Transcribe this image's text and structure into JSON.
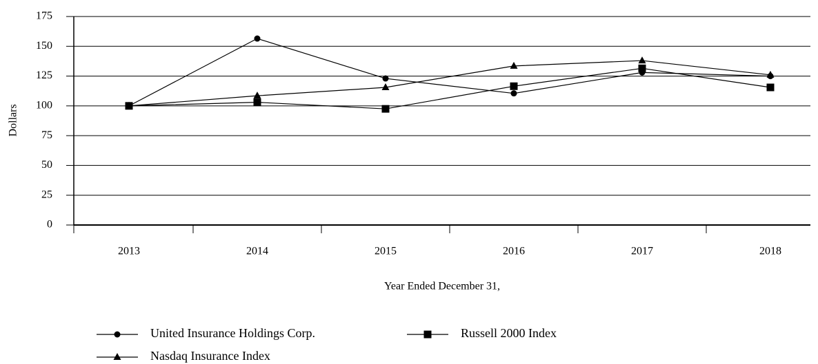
{
  "chart_data": {
    "type": "line",
    "xlabel": "Year Ended December 31,",
    "ylabel": "Dollars",
    "categories": [
      "2013",
      "2014",
      "2015",
      "2016",
      "2017",
      "2018"
    ],
    "series": [
      {
        "name": "United Insurance Holdings Corp.",
        "color": "#000000",
        "marker": "circle",
        "values": [
          100,
          156.5,
          123,
          110.5,
          128,
          125
        ]
      },
      {
        "name": "Russell 2000 Index",
        "color": "#000000",
        "marker": "square",
        "values": [
          100,
          103,
          97.5,
          116.5,
          131.5,
          115.5
        ]
      },
      {
        "name": "Nasdaq Insurance Index",
        "color": "#000000",
        "marker": "triangle",
        "values": [
          100,
          108.5,
          115.5,
          133.5,
          138,
          126
        ]
      }
    ],
    "ylim": [
      0,
      175
    ],
    "yticks": [
      0,
      25,
      50,
      75,
      100,
      125,
      150,
      175
    ],
    "grid": true
  }
}
